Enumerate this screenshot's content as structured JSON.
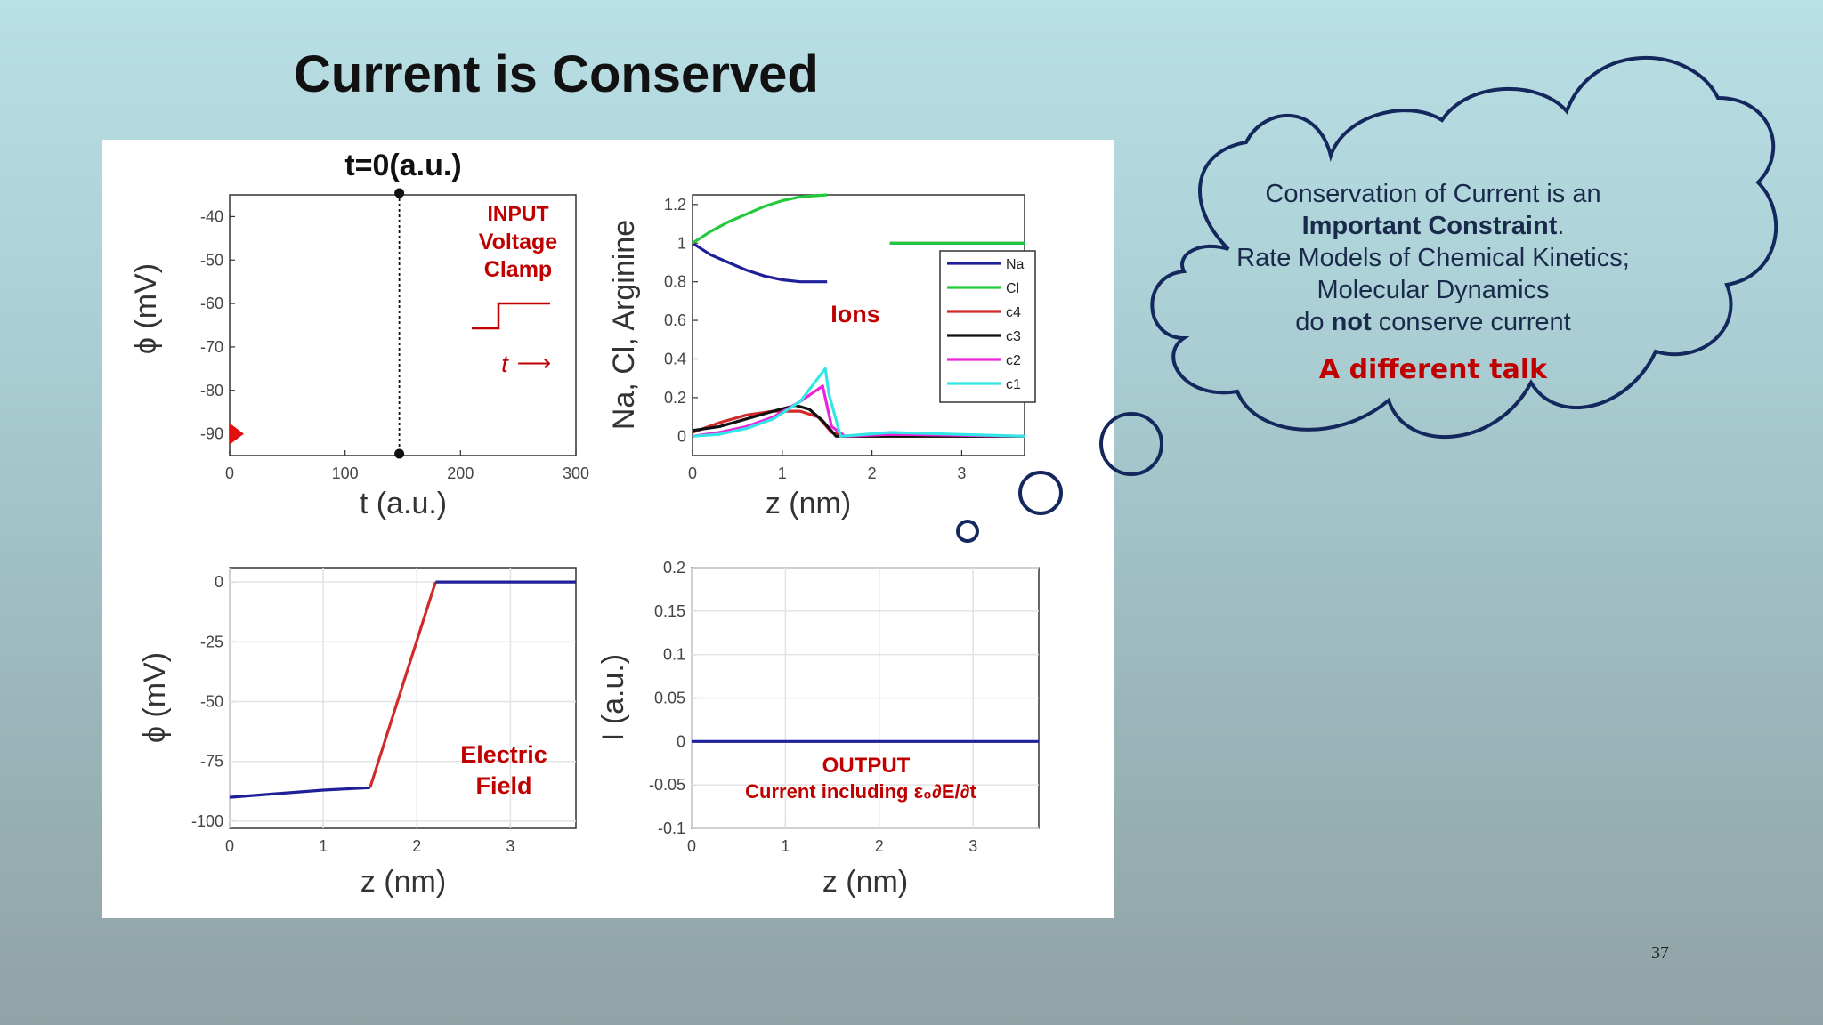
{
  "slide": {
    "title": "Current is Conserved",
    "page_number": "37"
  },
  "cloud": {
    "line1": "Conservation of Current is an",
    "line2": "Important Constraint",
    "line2_suffix": ".",
    "line3": "Rate Models of Chemical Kinetics;",
    "line4": "Molecular Dynamics",
    "line5_prefix": "do ",
    "line5_bold": "not",
    "line5_suffix": " conserve current",
    "talk": "A different talk"
  },
  "annotations": {
    "time_label": "t=0(a.u.)",
    "input_title": "INPUT",
    "input_line2": "Voltage",
    "input_line3": "Clamp",
    "input_t": "t",
    "input_arrow": "⟶",
    "ions_label": "Ions",
    "efield_line1": "Electric",
    "efield_line2": "Field",
    "output_title": "OUTPUT",
    "output_desc": "Current including ε₀∂E/∂t"
  },
  "colors": {
    "blue": "#1f1f99",
    "green": "#22c93b",
    "red": "#d02a2a",
    "black": "#111111",
    "magenta": "#ee22dd",
    "cyan": "#33e6e6",
    "annotation_red": "#c00000",
    "cloud_stroke": "#14285e"
  },
  "chart_data": [
    {
      "type": "line",
      "name": "voltage-input",
      "xlabel": "t (a.u.)",
      "ylabel": "ϕ (mV)",
      "xlim": [
        0,
        300
      ],
      "ylim": [
        -95,
        -35
      ],
      "xticks": [
        "0",
        "100",
        "200",
        "300"
      ],
      "yticks": [
        "-40",
        "-50",
        "-60",
        "-70",
        "-80",
        "-90"
      ],
      "ytick_values": [
        -40,
        -50,
        -60,
        -70,
        -80,
        -90
      ],
      "xtick_values": [
        0,
        100,
        200,
        300
      ],
      "time_marker_x": 147,
      "marker": {
        "x": 0,
        "y": -90
      },
      "grid": false
    },
    {
      "type": "line",
      "name": "ion-concentrations",
      "xlabel": "z (nm)",
      "ylabel": "Na, Cl, Arginine",
      "xlim": [
        0,
        3.7
      ],
      "ylim": [
        -0.1,
        1.25
      ],
      "xticks": [
        "0",
        "1",
        "2",
        "3"
      ],
      "xtick_values": [
        0,
        1,
        2,
        3
      ],
      "yticks": [
        "1.2",
        "1",
        "0.8",
        "0.6",
        "0.4",
        "0.2",
        "0"
      ],
      "ytick_values": [
        1.2,
        1,
        0.8,
        0.6,
        0.4,
        0.2,
        0
      ],
      "grid": false,
      "legend_position": "right",
      "series": [
        {
          "name": "Na",
          "color": "#1f1f99",
          "segments": [
            [
              [
                0,
                1.0
              ],
              [
                0.2,
                0.94
              ],
              [
                0.4,
                0.9
              ],
              [
                0.6,
                0.86
              ],
              [
                0.8,
                0.83
              ],
              [
                1.0,
                0.81
              ],
              [
                1.2,
                0.8
              ],
              [
                1.5,
                0.8
              ]
            ],
            [
              [
                2.2,
                1.0
              ],
              [
                3.7,
                1.0
              ]
            ]
          ]
        },
        {
          "name": "Cl",
          "color": "#22c93b",
          "segments": [
            [
              [
                0,
                1.0
              ],
              [
                0.2,
                1.06
              ],
              [
                0.4,
                1.11
              ],
              [
                0.6,
                1.15
              ],
              [
                0.8,
                1.19
              ],
              [
                1.0,
                1.22
              ],
              [
                1.2,
                1.24
              ],
              [
                1.5,
                1.25
              ]
            ],
            [
              [
                2.2,
                1.0
              ],
              [
                3.7,
                1.0
              ]
            ]
          ]
        },
        {
          "name": "c4",
          "color": "#d02a2a",
          "segments": [
            [
              [
                0,
                0.02
              ],
              [
                0.3,
                0.07
              ],
              [
                0.6,
                0.11
              ],
              [
                0.9,
                0.13
              ],
              [
                1.2,
                0.13
              ],
              [
                1.4,
                0.1
              ],
              [
                1.55,
                0.02
              ],
              [
                1.7,
                0.0
              ],
              [
                2.2,
                0.0
              ],
              [
                3.7,
                0.0
              ]
            ]
          ]
        },
        {
          "name": "c3",
          "color": "#111111",
          "segments": [
            [
              [
                0,
                0.03
              ],
              [
                0.3,
                0.05
              ],
              [
                0.6,
                0.09
              ],
              [
                0.9,
                0.13
              ],
              [
                1.15,
                0.16
              ],
              [
                1.3,
                0.14
              ],
              [
                1.45,
                0.08
              ],
              [
                1.6,
                0.0
              ],
              [
                2.2,
                0.0
              ],
              [
                3.7,
                0.0
              ]
            ]
          ]
        },
        {
          "name": "c2",
          "color": "#ee22dd",
          "segments": [
            [
              [
                0,
                0.0
              ],
              [
                0.3,
                0.02
              ],
              [
                0.6,
                0.05
              ],
              [
                0.9,
                0.1
              ],
              [
                1.2,
                0.18
              ],
              [
                1.45,
                0.26
              ],
              [
                1.55,
                0.05
              ],
              [
                1.7,
                0.0
              ],
              [
                2.2,
                0.01
              ],
              [
                3.7,
                0.0
              ]
            ]
          ]
        },
        {
          "name": "c1",
          "color": "#33e6e6",
          "segments": [
            [
              [
                0,
                0.0
              ],
              [
                0.3,
                0.01
              ],
              [
                0.6,
                0.04
              ],
              [
                0.9,
                0.09
              ],
              [
                1.2,
                0.18
              ],
              [
                1.48,
                0.35
              ],
              [
                1.52,
                0.22
              ],
              [
                1.65,
                0.0
              ],
              [
                2.2,
                0.02
              ],
              [
                3.7,
                0.0
              ]
            ]
          ]
        }
      ]
    },
    {
      "type": "line",
      "name": "electric-potential",
      "xlabel": "z (nm)",
      "ylabel": "ϕ (mV)",
      "xlim": [
        0,
        3.7
      ],
      "ylim": [
        -103,
        6
      ],
      "xticks": [
        "0",
        "1",
        "2",
        "3"
      ],
      "xtick_values": [
        0,
        1,
        2,
        3
      ],
      "yticks": [
        "0",
        "-25",
        "-50",
        "-75",
        "-100"
      ],
      "ytick_values": [
        0,
        -25,
        -50,
        -75,
        -100
      ],
      "grid": true,
      "series": [
        {
          "name": "",
          "color": "#1f1f99",
          "segments": [
            [
              [
                0,
                -90
              ],
              [
                0.5,
                -88.5
              ],
              [
                1.0,
                -87
              ],
              [
                1.5,
                -86
              ]
            ]
          ]
        },
        {
          "name": "",
          "color": "#d02a2a",
          "segments": [
            [
              [
                1.5,
                -86
              ],
              [
                2.2,
                0
              ]
            ]
          ]
        },
        {
          "name": "",
          "color": "#1f1f99",
          "segments": [
            [
              [
                2.2,
                0
              ],
              [
                3.7,
                0
              ]
            ]
          ]
        }
      ]
    },
    {
      "type": "line",
      "name": "current-output",
      "xlabel": "z (nm)",
      "ylabel": "I (a.u.)",
      "xlim": [
        0,
        3.7
      ],
      "ylim": [
        -0.1,
        0.2
      ],
      "xticks": [
        "0",
        "1",
        "2",
        "3"
      ],
      "xtick_values": [
        0,
        1,
        2,
        3
      ],
      "yticks": [
        "0.2",
        "0.15",
        "0.1",
        "0.05",
        "0",
        "-0.05",
        "-0.1"
      ],
      "ytick_values": [
        0.2,
        0.15,
        0.1,
        0.05,
        0,
        -0.05,
        -0.1
      ],
      "grid": true,
      "series": [
        {
          "name": "",
          "color": "#1f1f99",
          "segments": [
            [
              [
                0,
                0
              ],
              [
                3.7,
                0
              ]
            ]
          ]
        }
      ]
    }
  ]
}
